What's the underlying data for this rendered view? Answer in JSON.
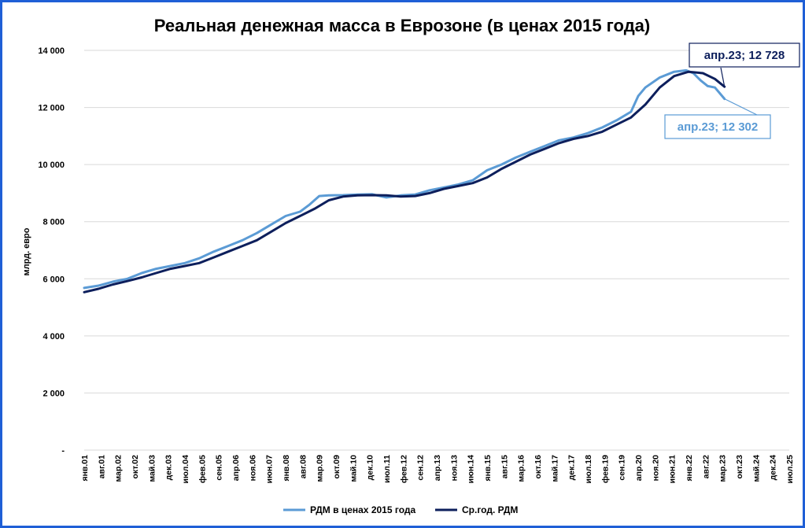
{
  "chart_data": {
    "type": "line",
    "title": "Реальная денежная масса в Еврозоне (в ценах 2015 года)",
    "ylabel": "млрд. евро",
    "ylim": [
      0,
      14000
    ],
    "yticks": [
      0,
      2000,
      4000,
      6000,
      8000,
      10000,
      12000,
      14000
    ],
    "ytick_labels": [
      "-",
      "2 000",
      "4 000",
      "6 000",
      "8 000",
      "10 000",
      "12 000",
      "14 000"
    ],
    "xtick_labels": [
      "янв.01",
      "авг.01",
      "мар.02",
      "окт.02",
      "май.03",
      "дек.03",
      "июл.04",
      "фев.05",
      "сен.05",
      "апр.06",
      "ноя.06",
      "июн.07",
      "янв.08",
      "авг.08",
      "мар.09",
      "окт.09",
      "май.10",
      "дек.10",
      "июл.11",
      "фев.12",
      "сен.12",
      "апр.13",
      "ноя.13",
      "июн.14",
      "янв.15",
      "авг.15",
      "мар.16",
      "окт.16",
      "май.17",
      "дек.17",
      "июл.18",
      "фев.19",
      "сен.19",
      "апр.20",
      "ноя.20",
      "июн.21",
      "янв.22",
      "авг.22",
      "мар.23",
      "окт.23",
      "май.24",
      "дек.24",
      "июл.25"
    ],
    "x_start": "янв.01",
    "x_end": "июл.25",
    "grid": "horizontal",
    "legend_position": "bottom",
    "series": [
      {
        "name": "РДМ в ценах 2015 года",
        "color": "#5b9bd5",
        "points": [
          [
            "2001-01",
            5680
          ],
          [
            "2001-07",
            5760
          ],
          [
            "2002-01",
            5900
          ],
          [
            "2002-07",
            6000
          ],
          [
            "2003-01",
            6200
          ],
          [
            "2003-07",
            6350
          ],
          [
            "2004-01",
            6450
          ],
          [
            "2004-07",
            6550
          ],
          [
            "2005-01",
            6720
          ],
          [
            "2005-07",
            6950
          ],
          [
            "2006-01",
            7150
          ],
          [
            "2006-07",
            7350
          ],
          [
            "2007-01",
            7600
          ],
          [
            "2007-07",
            7900
          ],
          [
            "2008-01",
            8200
          ],
          [
            "2008-07",
            8350
          ],
          [
            "2008-11",
            8600
          ],
          [
            "2009-03",
            8900
          ],
          [
            "2009-07",
            8920
          ],
          [
            "2010-01",
            8930
          ],
          [
            "2010-07",
            8950
          ],
          [
            "2011-01",
            8960
          ],
          [
            "2011-07",
            8850
          ],
          [
            "2012-01",
            8920
          ],
          [
            "2012-07",
            8950
          ],
          [
            "2013-01",
            9100
          ],
          [
            "2013-07",
            9200
          ],
          [
            "2014-01",
            9300
          ],
          [
            "2014-07",
            9450
          ],
          [
            "2015-01",
            9800
          ],
          [
            "2015-07",
            10000
          ],
          [
            "2016-01",
            10250
          ],
          [
            "2016-07",
            10450
          ],
          [
            "2017-01",
            10650
          ],
          [
            "2017-07",
            10850
          ],
          [
            "2018-01",
            10950
          ],
          [
            "2018-07",
            11100
          ],
          [
            "2019-01",
            11300
          ],
          [
            "2019-07",
            11550
          ],
          [
            "2020-01",
            11850
          ],
          [
            "2020-04",
            12400
          ],
          [
            "2020-07",
            12700
          ],
          [
            "2021-01",
            13050
          ],
          [
            "2021-07",
            13250
          ],
          [
            "2021-12",
            13300
          ],
          [
            "2022-03",
            13200
          ],
          [
            "2022-06",
            12950
          ],
          [
            "2022-09",
            12750
          ],
          [
            "2022-12",
            12700
          ],
          [
            "2023-02",
            12500
          ],
          [
            "2023-04",
            12302
          ]
        ]
      },
      {
        "name": "Ср.год. РДМ",
        "color": "#0d1f5c",
        "points": [
          [
            "2001-01",
            5530
          ],
          [
            "2001-07",
            5650
          ],
          [
            "2002-01",
            5800
          ],
          [
            "2002-07",
            5920
          ],
          [
            "2003-01",
            6050
          ],
          [
            "2003-07",
            6200
          ],
          [
            "2004-01",
            6350
          ],
          [
            "2004-07",
            6450
          ],
          [
            "2005-01",
            6550
          ],
          [
            "2005-07",
            6750
          ],
          [
            "2006-01",
            6950
          ],
          [
            "2006-07",
            7150
          ],
          [
            "2007-01",
            7350
          ],
          [
            "2007-07",
            7650
          ],
          [
            "2008-01",
            7950
          ],
          [
            "2008-07",
            8200
          ],
          [
            "2009-01",
            8450
          ],
          [
            "2009-07",
            8750
          ],
          [
            "2010-01",
            8880
          ],
          [
            "2010-07",
            8920
          ],
          [
            "2011-01",
            8930
          ],
          [
            "2011-07",
            8920
          ],
          [
            "2012-01",
            8880
          ],
          [
            "2012-07",
            8900
          ],
          [
            "2013-01",
            9000
          ],
          [
            "2013-07",
            9150
          ],
          [
            "2014-01",
            9250
          ],
          [
            "2014-07",
            9350
          ],
          [
            "2015-01",
            9550
          ],
          [
            "2015-07",
            9850
          ],
          [
            "2016-01",
            10100
          ],
          [
            "2016-07",
            10350
          ],
          [
            "2017-01",
            10550
          ],
          [
            "2017-07",
            10750
          ],
          [
            "2018-01",
            10900
          ],
          [
            "2018-07",
            11000
          ],
          [
            "2019-01",
            11150
          ],
          [
            "2019-07",
            11400
          ],
          [
            "2020-01",
            11650
          ],
          [
            "2020-07",
            12100
          ],
          [
            "2021-01",
            12700
          ],
          [
            "2021-07",
            13100
          ],
          [
            "2022-01",
            13250
          ],
          [
            "2022-07",
            13200
          ],
          [
            "2022-12",
            13000
          ],
          [
            "2023-04",
            12728
          ]
        ]
      }
    ],
    "annotations": [
      {
        "text": "апр.23;  12 728",
        "series": "Ср.год. РДМ",
        "x": "2023-04",
        "y": 12728,
        "color": "#0d1f5c"
      },
      {
        "text": "апр.23;  12 302",
        "series": "РДМ в ценах 2015 года",
        "x": "2023-04",
        "y": 12302,
        "color": "#5b9bd5"
      }
    ]
  }
}
